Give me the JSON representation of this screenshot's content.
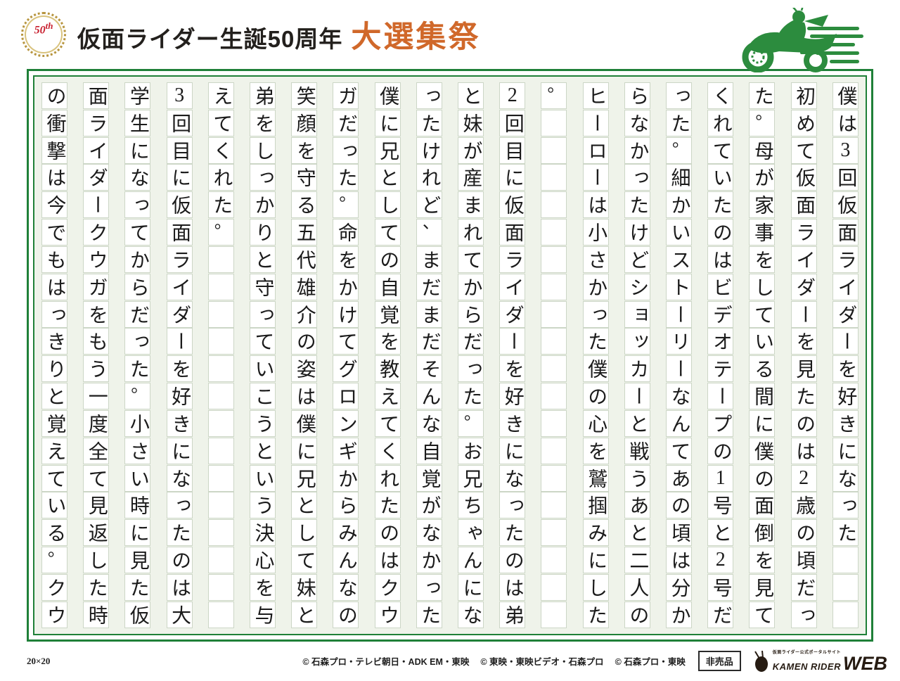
{
  "header": {
    "anniversary_badge": {
      "number": "50",
      "suffix": "th"
    },
    "title_main": "仮面ライダー生誕50周年",
    "title_accent": "大選集祭"
  },
  "manuscript": {
    "rows": 20,
    "grid_label": "20×20",
    "reading_order": "right-to-left",
    "columns": [
      "僕は3回仮面ライダーを好きになった",
      "初めて仮面ライダーを見たのは2歳の頃だっ",
      "た。母が家事をしている間に僕の面倒を見て",
      "くれていたのはビデオテープの1号と2号だ",
      "った。細かいストーリーなんてあの頃は分か",
      "らなかったけどショッカーと戦うあと二人の",
      "ヒーローは小さかった僕の心を鷲掴みにした",
      "。",
      "2回目に仮面ライダーを好きになったのは弟",
      "と妹が産まれてからだった。お兄ちゃんにな",
      "ったけれど、まだまだそんな自覚がなかった",
      "僕に兄としての自覚を教えてくれたのはクウ",
      "ガだった。命をかけてグロンギからみんなの",
      "笑顔を守る五代雄介の姿は僕に兄として妹と",
      "弟をしっかりと守っていこうという決心を与",
      "えてくれた。",
      "3回目に仮面ライダーを好きになったのは大",
      "学生になってからだった。小さい時に見た仮",
      "面ライダークウガをもう一度全て見返した時",
      "の衝撃は今でもはっきりと覚えている。クウ"
    ]
  },
  "footer": {
    "copyrights": [
      "© 石森プロ・テレビ朝日・ADK EM・東映",
      "© 東映・東映ビデオ・石森プロ",
      "© 石森プロ・東映"
    ],
    "not_for_sale": "非売品",
    "portal_logo": {
      "caption": "仮面ライダー公式ポータルサイト",
      "brand": "KAMEN RIDER",
      "web": "WEB"
    }
  },
  "colors": {
    "accent_green": "#1f8038",
    "moto_green": "#2c8c3e",
    "accent_orange": "#d0682a",
    "badge_red": "#c8202f",
    "badge_gold": "#b7953f"
  }
}
